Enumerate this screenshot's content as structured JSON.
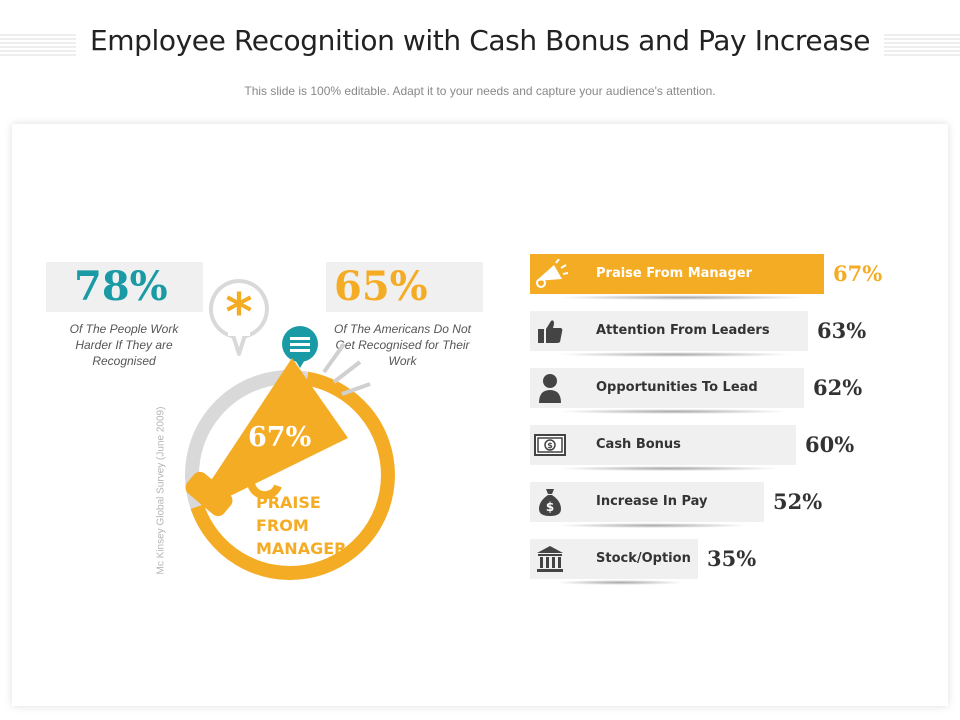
{
  "header": {
    "title": "Employee Recognition with Cash Bonus and Pay Increase",
    "subtitle": "This slide is 100% editable. Adapt it to your needs and capture your audience's attention."
  },
  "left_stats": [
    {
      "value": "78%",
      "caption": "Of The People Work Harder If They are Recognised",
      "color": "#1a9aa5"
    },
    {
      "value": "65%",
      "caption": "Of The Americans Do Not Get Recognised for Their Work",
      "color": "#f5ac25"
    }
  ],
  "source_note": "Mc Kinsey Global Survey (June 2009)",
  "gauge": {
    "value_text": "67%",
    "fraction": 0.67,
    "label": "PRAISE FROM MANAGER",
    "accent": "#f5ac25",
    "track": "#d9d9d9",
    "asterisk_icon": "asterisk-icon",
    "speech_icon": "speech-bubble-icon",
    "megaphone_icon": "megaphone-icon"
  },
  "rows": [
    {
      "label": "Praise From Manager",
      "value_text": "67%",
      "value": 67,
      "icon": "megaphone-icon",
      "active": true
    },
    {
      "label": "Attention From Leaders",
      "value_text": "63%",
      "value": 63,
      "icon": "thumbs-up-icon",
      "active": false
    },
    {
      "label": "Opportunities To Lead",
      "value_text": "62%",
      "value": 62,
      "icon": "person-icon",
      "active": false
    },
    {
      "label": "Cash Bonus",
      "value_text": "60%",
      "value": 60,
      "icon": "banknote-icon",
      "active": false
    },
    {
      "label": "Increase In Pay",
      "value_text": "52%",
      "value": 52,
      "icon": "money-bag-icon",
      "active": false
    },
    {
      "label": "Stock/Option",
      "value_text": "35%",
      "value": 35,
      "icon": "bank-icon",
      "active": false
    }
  ],
  "colors": {
    "accent": "#f5ac25",
    "teal": "#1a9aa5",
    "gray_bar": "#f0f0f0"
  }
}
